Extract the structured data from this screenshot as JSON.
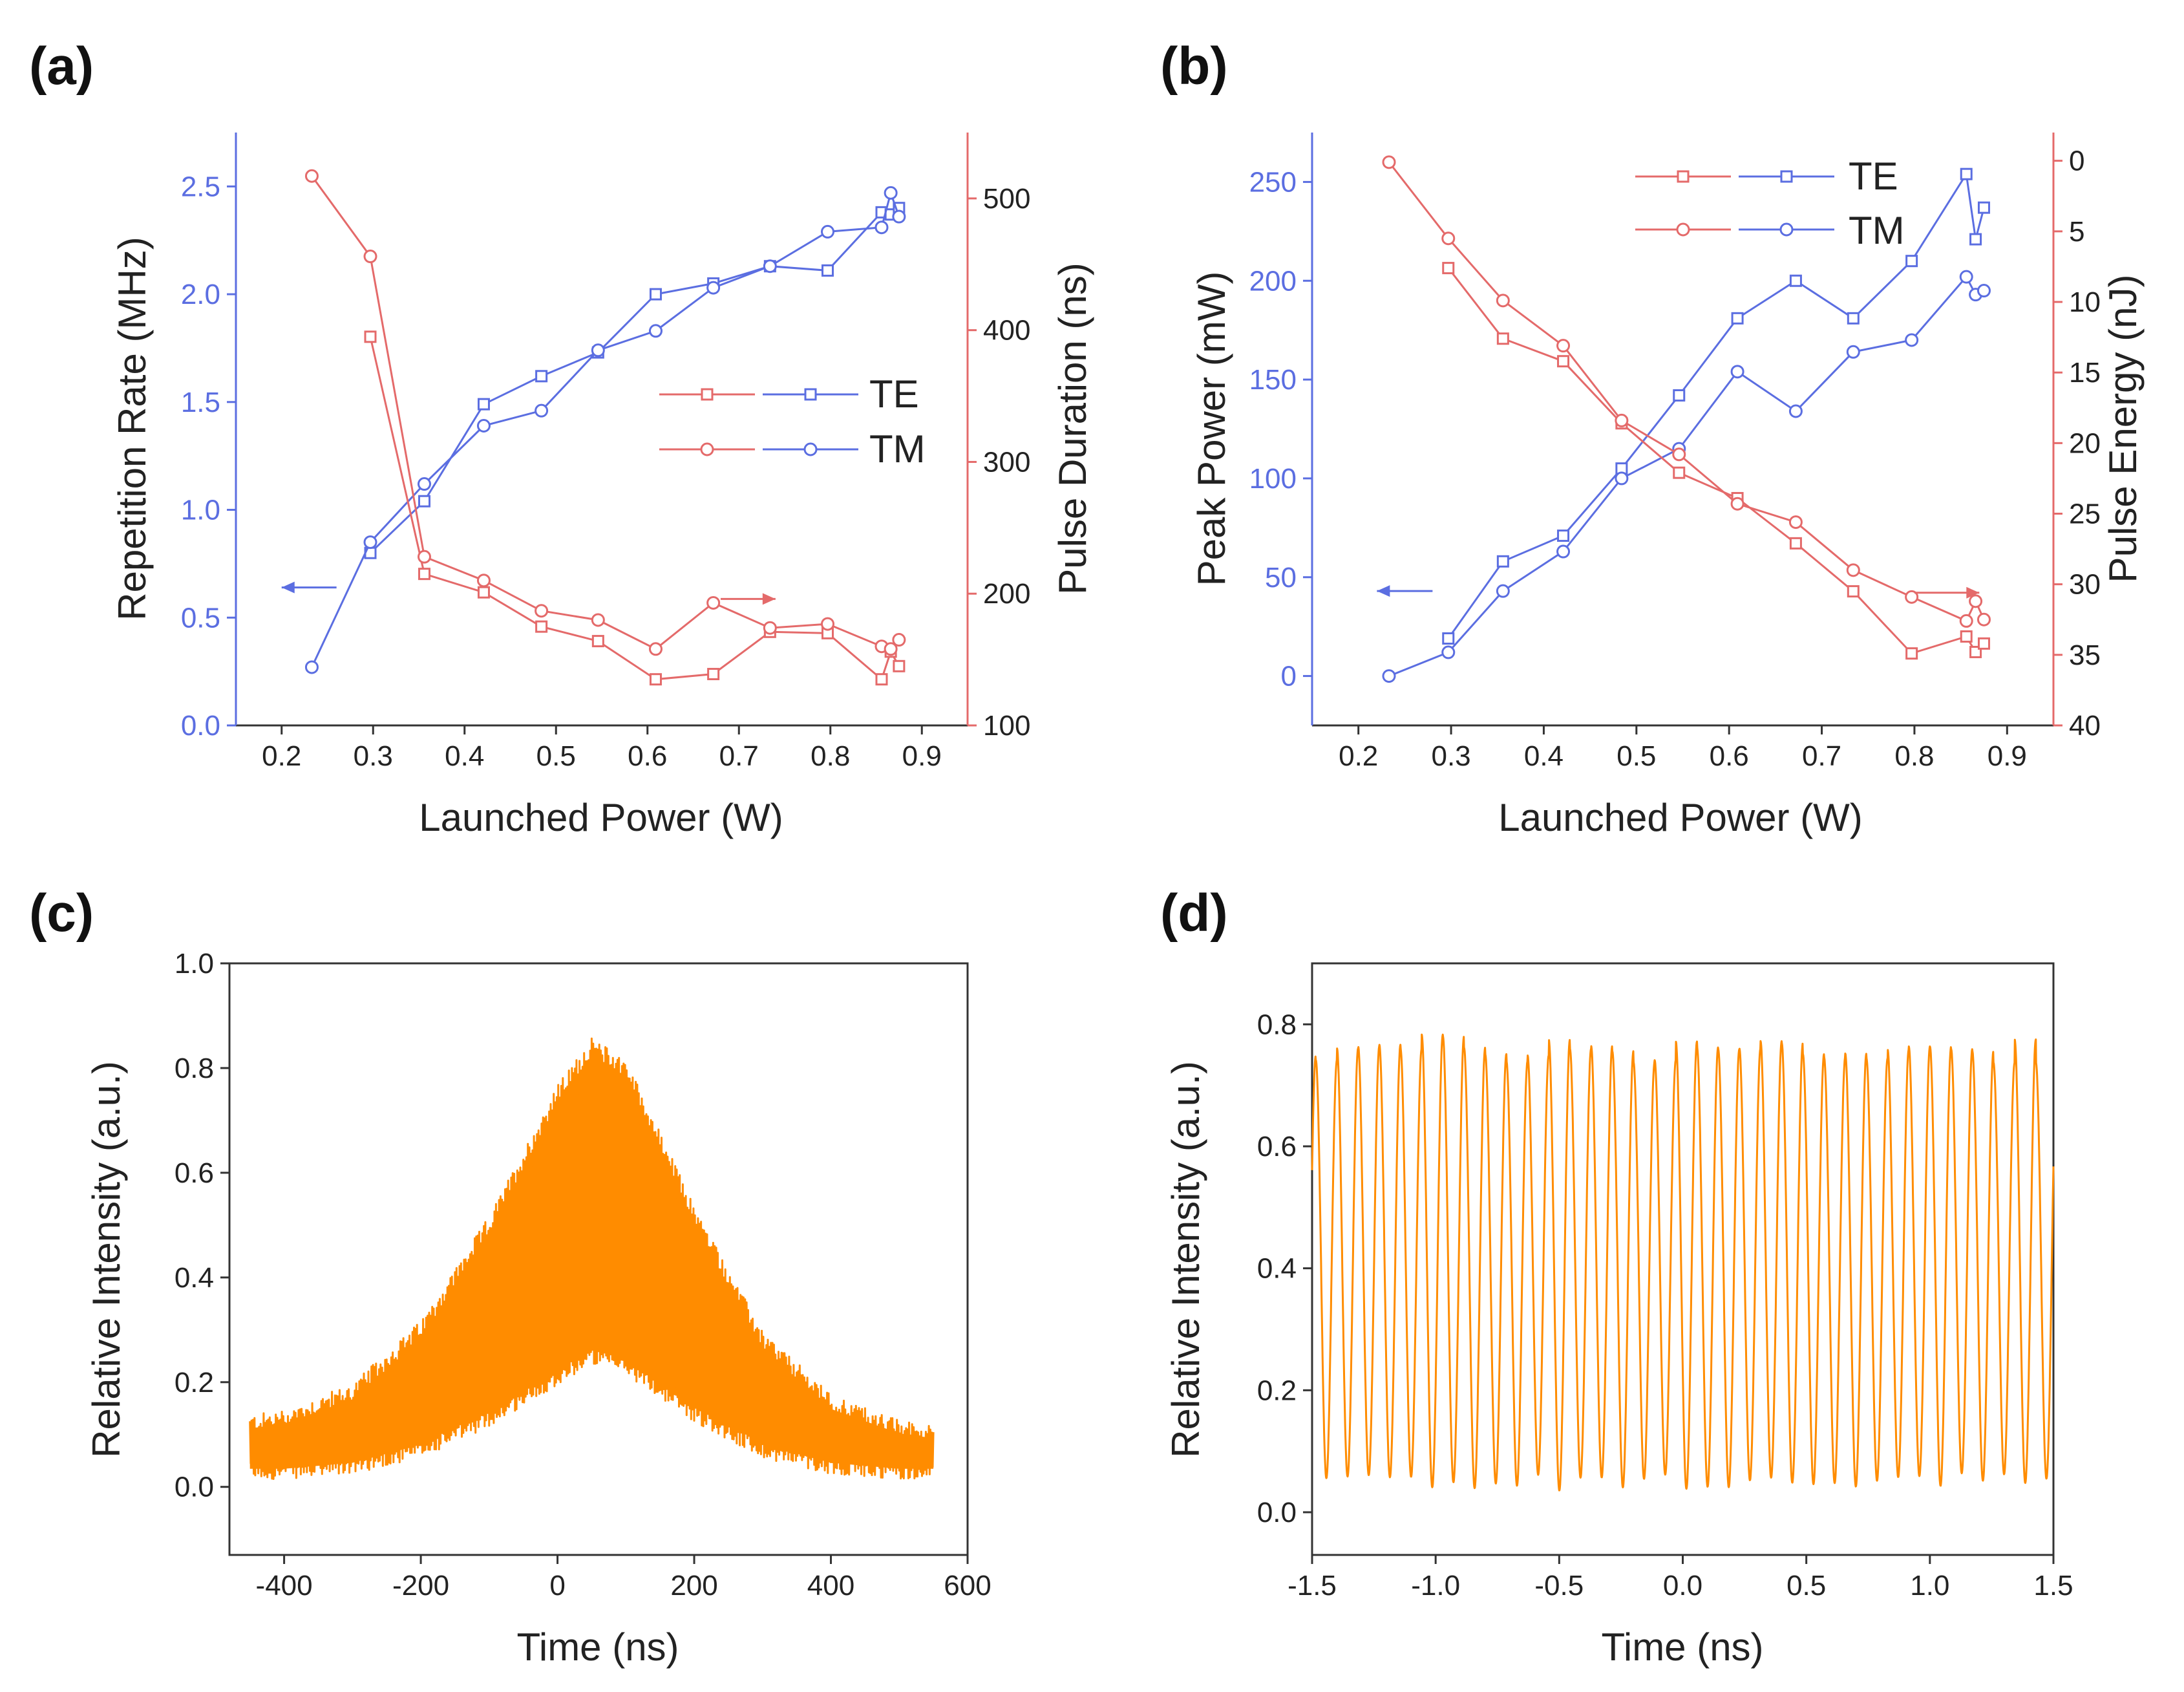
{
  "colors": {
    "blue": "#5b6ee1",
    "red": "#e46a6a",
    "orange": "#ff8c00",
    "axis": "#333333"
  },
  "chart_data": [
    {
      "id": "a",
      "panel_label": "(a)",
      "type": "line",
      "title": "",
      "xlabel": "Launched Power (W)",
      "ylabel_left": "Repetition Rate (MHz)",
      "ylabel_right": "Pulse Duration (ns)",
      "xlim": [
        0.15,
        0.95
      ],
      "ylim_left": [
        0.0,
        2.75
      ],
      "ylim_right": [
        100,
        550
      ],
      "xticks": [
        "0.2",
        "0.3",
        "0.4",
        "0.5",
        "0.6",
        "0.7",
        "0.8",
        "0.9"
      ],
      "yticks_left": [
        "0.0",
        "0.5",
        "1.0",
        "1.5",
        "2.0",
        "2.5"
      ],
      "yticks_right": [
        "100",
        "200",
        "300",
        "400",
        "500"
      ],
      "legend": [
        "TE",
        "TM"
      ],
      "legend_position": "center-right",
      "series": [
        {
          "name": "TE",
          "axis": "left",
          "marker": "square",
          "color": "blue",
          "x": [
            0.297,
            0.356,
            0.421,
            0.484,
            0.546,
            0.609,
            0.672,
            0.734,
            0.797,
            0.856,
            0.866,
            0.875
          ],
          "y": [
            0.8,
            1.04,
            1.49,
            1.62,
            1.73,
            2.0,
            2.05,
            2.13,
            2.11,
            2.38,
            2.37,
            2.4
          ]
        },
        {
          "name": "TM",
          "axis": "left",
          "marker": "circle",
          "color": "blue",
          "x": [
            0.233,
            0.297,
            0.356,
            0.421,
            0.484,
            0.546,
            0.609,
            0.672,
            0.734,
            0.797,
            0.856,
            0.866,
            0.875
          ],
          "y": [
            0.27,
            0.85,
            1.12,
            1.39,
            1.46,
            1.74,
            1.83,
            2.03,
            2.13,
            2.29,
            2.31,
            2.47,
            2.36
          ]
        },
        {
          "name": "TE",
          "axis": "right",
          "marker": "square",
          "color": "red",
          "x": [
            0.297,
            0.356,
            0.421,
            0.484,
            0.546,
            0.609,
            0.672,
            0.734,
            0.797,
            0.856,
            0.866,
            0.875
          ],
          "y": [
            395,
            215,
            201,
            175,
            164,
            135,
            139,
            171,
            170,
            135,
            156,
            145
          ]
        },
        {
          "name": "TM",
          "axis": "right",
          "marker": "circle",
          "color": "red",
          "x": [
            0.233,
            0.297,
            0.356,
            0.421,
            0.484,
            0.546,
            0.609,
            0.672,
            0.734,
            0.797,
            0.856,
            0.866,
            0.875
          ],
          "y": [
            517,
            456,
            228,
            210,
            187,
            180,
            158,
            193,
            174,
            177,
            160,
            158,
            165
          ]
        }
      ],
      "annotations": [
        {
          "type": "arrow",
          "direction": "left",
          "color": "blue",
          "x": [
            0.26,
            0.2
          ],
          "y": 0.64,
          "axis": "left"
        },
        {
          "type": "arrow",
          "direction": "right",
          "color": "red",
          "x": [
            0.68,
            0.74
          ],
          "y": 196,
          "axis": "right"
        }
      ]
    },
    {
      "id": "b",
      "panel_label": "(b)",
      "type": "line",
      "title": "",
      "xlabel": "Launched Power (W)",
      "ylabel_left": "Peak Power (mW)",
      "ylabel_right": "Pulse Energy (nJ)",
      "xlim": [
        0.15,
        0.95
      ],
      "ylim_left": [
        -25,
        275
      ],
      "ylim_right_inverted": [
        -2,
        40
      ],
      "xticks": [
        "0.2",
        "0.3",
        "0.4",
        "0.5",
        "0.6",
        "0.7",
        "0.8",
        "0.9"
      ],
      "yticks_left": [
        "0",
        "50",
        "100",
        "150",
        "200",
        "250"
      ],
      "yticks_right": [
        "0",
        "5",
        "10",
        "15",
        "20",
        "25",
        "30",
        "35",
        "40"
      ],
      "legend": [
        "TE",
        "TM"
      ],
      "legend_position": "top-right",
      "series": [
        {
          "name": "TE",
          "axis": "left",
          "marker": "square",
          "color": "blue",
          "x": [
            0.297,
            0.356,
            0.421,
            0.484,
            0.546,
            0.609,
            0.672,
            0.734,
            0.797,
            0.856,
            0.866,
            0.875
          ],
          "y": [
            19,
            58,
            71,
            105,
            142,
            181,
            200,
            181,
            210,
            254,
            221,
            237
          ]
        },
        {
          "name": "TM",
          "axis": "left",
          "marker": "circle",
          "color": "blue",
          "x": [
            0.233,
            0.297,
            0.356,
            0.421,
            0.484,
            0.546,
            0.609,
            0.672,
            0.734,
            0.797,
            0.856,
            0.866,
            0.875
          ],
          "y": [
            0,
            12,
            43,
            63,
            100,
            115,
            154,
            134,
            164,
            170,
            202,
            193,
            195
          ]
        },
        {
          "name": "TE",
          "axis": "right",
          "marker": "square",
          "color": "red",
          "x": [
            0.297,
            0.356,
            0.421,
            0.484,
            0.546,
            0.609,
            0.672,
            0.734,
            0.797,
            0.856,
            0.866,
            0.875
          ],
          "y": [
            7.6,
            12.6,
            14.2,
            18.6,
            22.1,
            23.9,
            27.1,
            30.5,
            34.9,
            33.7,
            34.8,
            34.2
          ]
        },
        {
          "name": "TM",
          "axis": "right",
          "marker": "circle",
          "color": "red",
          "x": [
            0.233,
            0.297,
            0.356,
            0.421,
            0.484,
            0.546,
            0.609,
            0.672,
            0.734,
            0.797,
            0.856,
            0.866,
            0.875
          ],
          "y": [
            0.1,
            5.5,
            9.9,
            13.1,
            18.4,
            20.8,
            24.3,
            25.6,
            29.0,
            30.9,
            32.6,
            31.2,
            32.5
          ]
        }
      ],
      "annotations": [
        {
          "type": "arrow",
          "direction": "left",
          "color": "blue",
          "x": [
            0.28,
            0.22
          ],
          "y": 43,
          "axis": "left"
        },
        {
          "type": "arrow",
          "direction": "right",
          "color": "red",
          "x": [
            0.8,
            0.87
          ],
          "y": 30.6,
          "axis": "right"
        }
      ]
    },
    {
      "id": "c",
      "panel_label": "(c)",
      "type": "area",
      "title": "",
      "xlabel": "Time (ns)",
      "ylabel": "Relative Intensity (a.u.)",
      "xlim": [
        -480,
        600
      ],
      "ylim": [
        -0.13,
        1.0
      ],
      "xticks": [
        "-400",
        "-200",
        "0",
        "200",
        "400",
        "600"
      ],
      "yticks": [
        "0.0",
        "0.2",
        "0.4",
        "0.6",
        "0.8",
        "1.0"
      ],
      "color": "orange",
      "envelope": {
        "x": [
          -450,
          -400,
          -300,
          -200,
          -100,
          0,
          50,
          100,
          200,
          300,
          400,
          500,
          550
        ],
        "upper": [
          0.12,
          0.13,
          0.18,
          0.3,
          0.5,
          0.75,
          0.84,
          0.8,
          0.52,
          0.28,
          0.16,
          0.11,
          0.1
        ],
        "lower": [
          0.03,
          0.03,
          0.04,
          0.07,
          0.13,
          0.21,
          0.25,
          0.23,
          0.14,
          0.07,
          0.04,
          0.03,
          0.03
        ]
      }
    },
    {
      "id": "d",
      "panel_label": "(d)",
      "type": "line",
      "title": "",
      "xlabel": "Time (ns)",
      "ylabel": "Relative Intensity (a.u.)",
      "xlim": [
        -1.5,
        1.5
      ],
      "ylim": [
        -0.07,
        0.9
      ],
      "xticks": [
        "-1.5",
        "-1.0",
        "-0.5",
        "0.0",
        "0.5",
        "1.0",
        "1.5"
      ],
      "yticks": [
        "0.0",
        "0.2",
        "0.4",
        "0.6",
        "0.8"
      ],
      "color": "orange",
      "oscillation": {
        "period_ns": 0.0857,
        "min": 0.05,
        "max": 0.76,
        "first_peak_ns": -1.485
      }
    }
  ]
}
